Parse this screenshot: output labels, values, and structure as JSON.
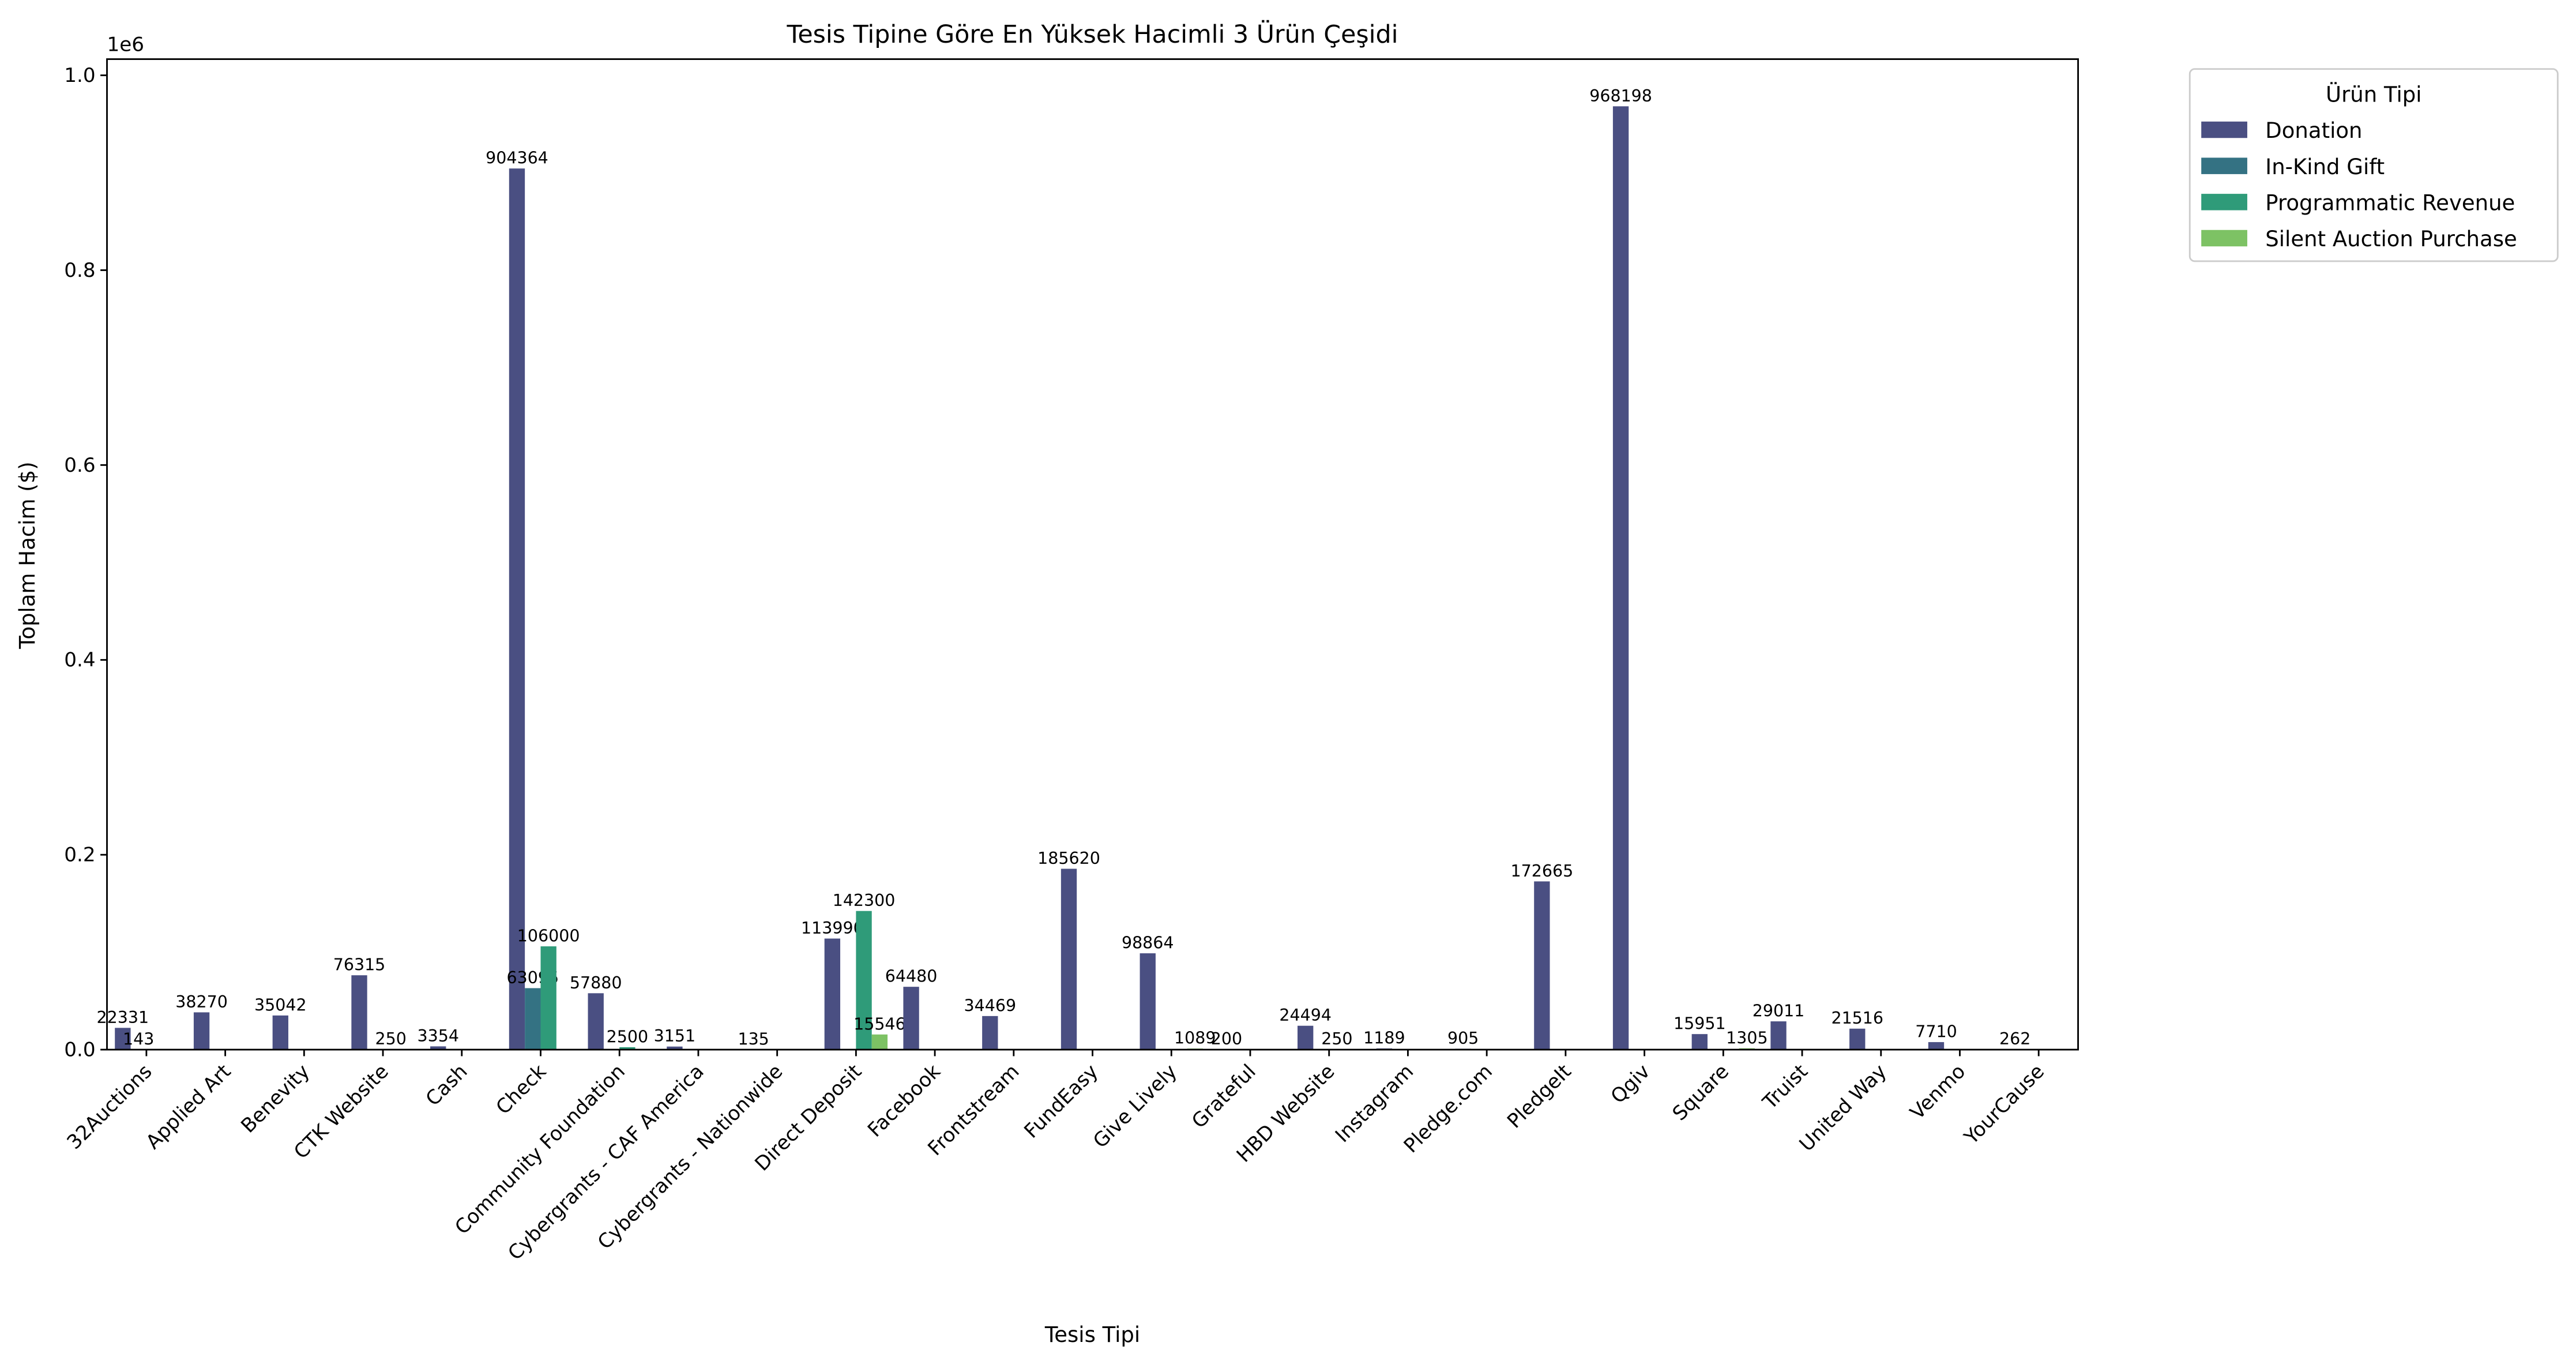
{
  "chart_data": {
    "type": "bar",
    "title": "Tesis Tipine Göre En Yüksek Hacimli 3 Ürün Çeşidi",
    "x_label": "Tesis Tipi",
    "y_label": "Toplam Hacim ($)",
    "y_offset_text": "1e6",
    "legend_title": "Ürün Tipi",
    "legend_position": "outside-upper-right",
    "categories": [
      "32Auctions",
      "Applied Art",
      "Benevity",
      "CTK Website",
      "Cash",
      "Check",
      "Community Foundation",
      "Cybergrants - CAF America",
      "Cybergrants - Nationwide",
      "Direct Deposit",
      "Facebook",
      "Frontstream",
      "FundEasy",
      "Give Lively",
      "Grateful",
      "HBD Website",
      "Instagram",
      "Pledge.com",
      "PledgeIt",
      "Qgiv",
      "Square",
      "Truist",
      "United Way",
      "Venmo",
      "YourCause"
    ],
    "series": [
      {
        "name": "Donation",
        "color": "#4a4f82",
        "values": [
          22331,
          38270,
          35042,
          76315,
          3354,
          904364,
          57880,
          3151,
          135,
          113990,
          64480,
          34469,
          185620,
          98864,
          200,
          24494,
          1189,
          905,
          172665,
          968198,
          15951,
          29011,
          21516,
          7710,
          262
        ]
      },
      {
        "name": "In-Kind Gift",
        "color": "#347283",
        "values": [
          143,
          null,
          null,
          null,
          null,
          63095,
          null,
          null,
          null,
          null,
          null,
          null,
          null,
          null,
          null,
          null,
          null,
          null,
          null,
          null,
          null,
          null,
          null,
          null,
          null
        ]
      },
      {
        "name": "Programmatic Revenue",
        "color": "#2f9b79",
        "values": [
          null,
          null,
          null,
          250,
          null,
          106000,
          2500,
          null,
          null,
          142300,
          null,
          null,
          null,
          null,
          null,
          250,
          null,
          null,
          null,
          null,
          null,
          null,
          null,
          null,
          null
        ]
      },
      {
        "name": "Silent Auction Purchase",
        "color": "#7dc264",
        "values": [
          null,
          null,
          null,
          null,
          null,
          null,
          null,
          null,
          null,
          15546,
          null,
          null,
          null,
          1089,
          null,
          null,
          null,
          null,
          null,
          null,
          1305,
          null,
          null,
          null,
          null
        ]
      }
    ],
    "ylim": [
      0,
      1016609
    ],
    "yticks": [
      {
        "value": 0,
        "label": "0.0"
      },
      {
        "value": 200000,
        "label": "0.2"
      },
      {
        "value": 400000,
        "label": "0.4"
      },
      {
        "value": 600000,
        "label": "0.6"
      },
      {
        "value": 800000,
        "label": "0.8"
      },
      {
        "value": 1000000,
        "label": "1.0"
      }
    ],
    "grid": false
  }
}
